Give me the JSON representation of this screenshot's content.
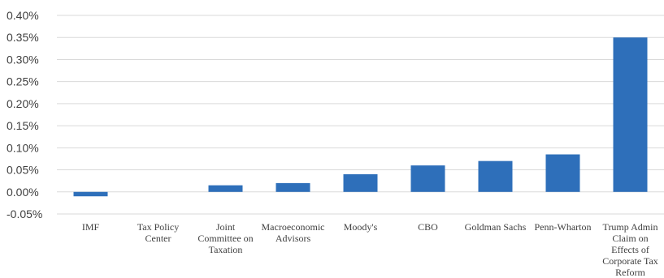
{
  "chart_data": {
    "type": "bar",
    "categories": [
      [
        "IMF"
      ],
      [
        "Tax Policy",
        "Center"
      ],
      [
        "Joint",
        "Committee on",
        "Taxation"
      ],
      [
        "Macroeconomic",
        "Advisors"
      ],
      [
        "Moody's"
      ],
      [
        "CBO"
      ],
      [
        "Goldman Sachs"
      ],
      [
        "Penn-Wharton"
      ],
      [
        "Trump Admin",
        "Claim on",
        "Effects of",
        "Corporate Tax",
        "Reform"
      ]
    ],
    "values": [
      -0.0001,
      0.0,
      0.00015,
      0.0002,
      0.0004,
      0.0006,
      0.0007,
      0.00085,
      0.0035
    ],
    "ylim": [
      -0.0005,
      0.004
    ],
    "yticks": [
      "0.40%",
      "0.35%",
      "0.30%",
      "0.25%",
      "0.20%",
      "0.15%",
      "0.10%",
      "0.05%",
      "0.00%",
      "-0.05%"
    ],
    "ytick_values": [
      0.004,
      0.0035,
      0.003,
      0.0025,
      0.002,
      0.0015,
      0.001,
      0.0005,
      0.0,
      -0.0005
    ],
    "grid": true,
    "bar_color": "#2e6fba",
    "title": "",
    "xlabel": "",
    "ylabel": ""
  }
}
